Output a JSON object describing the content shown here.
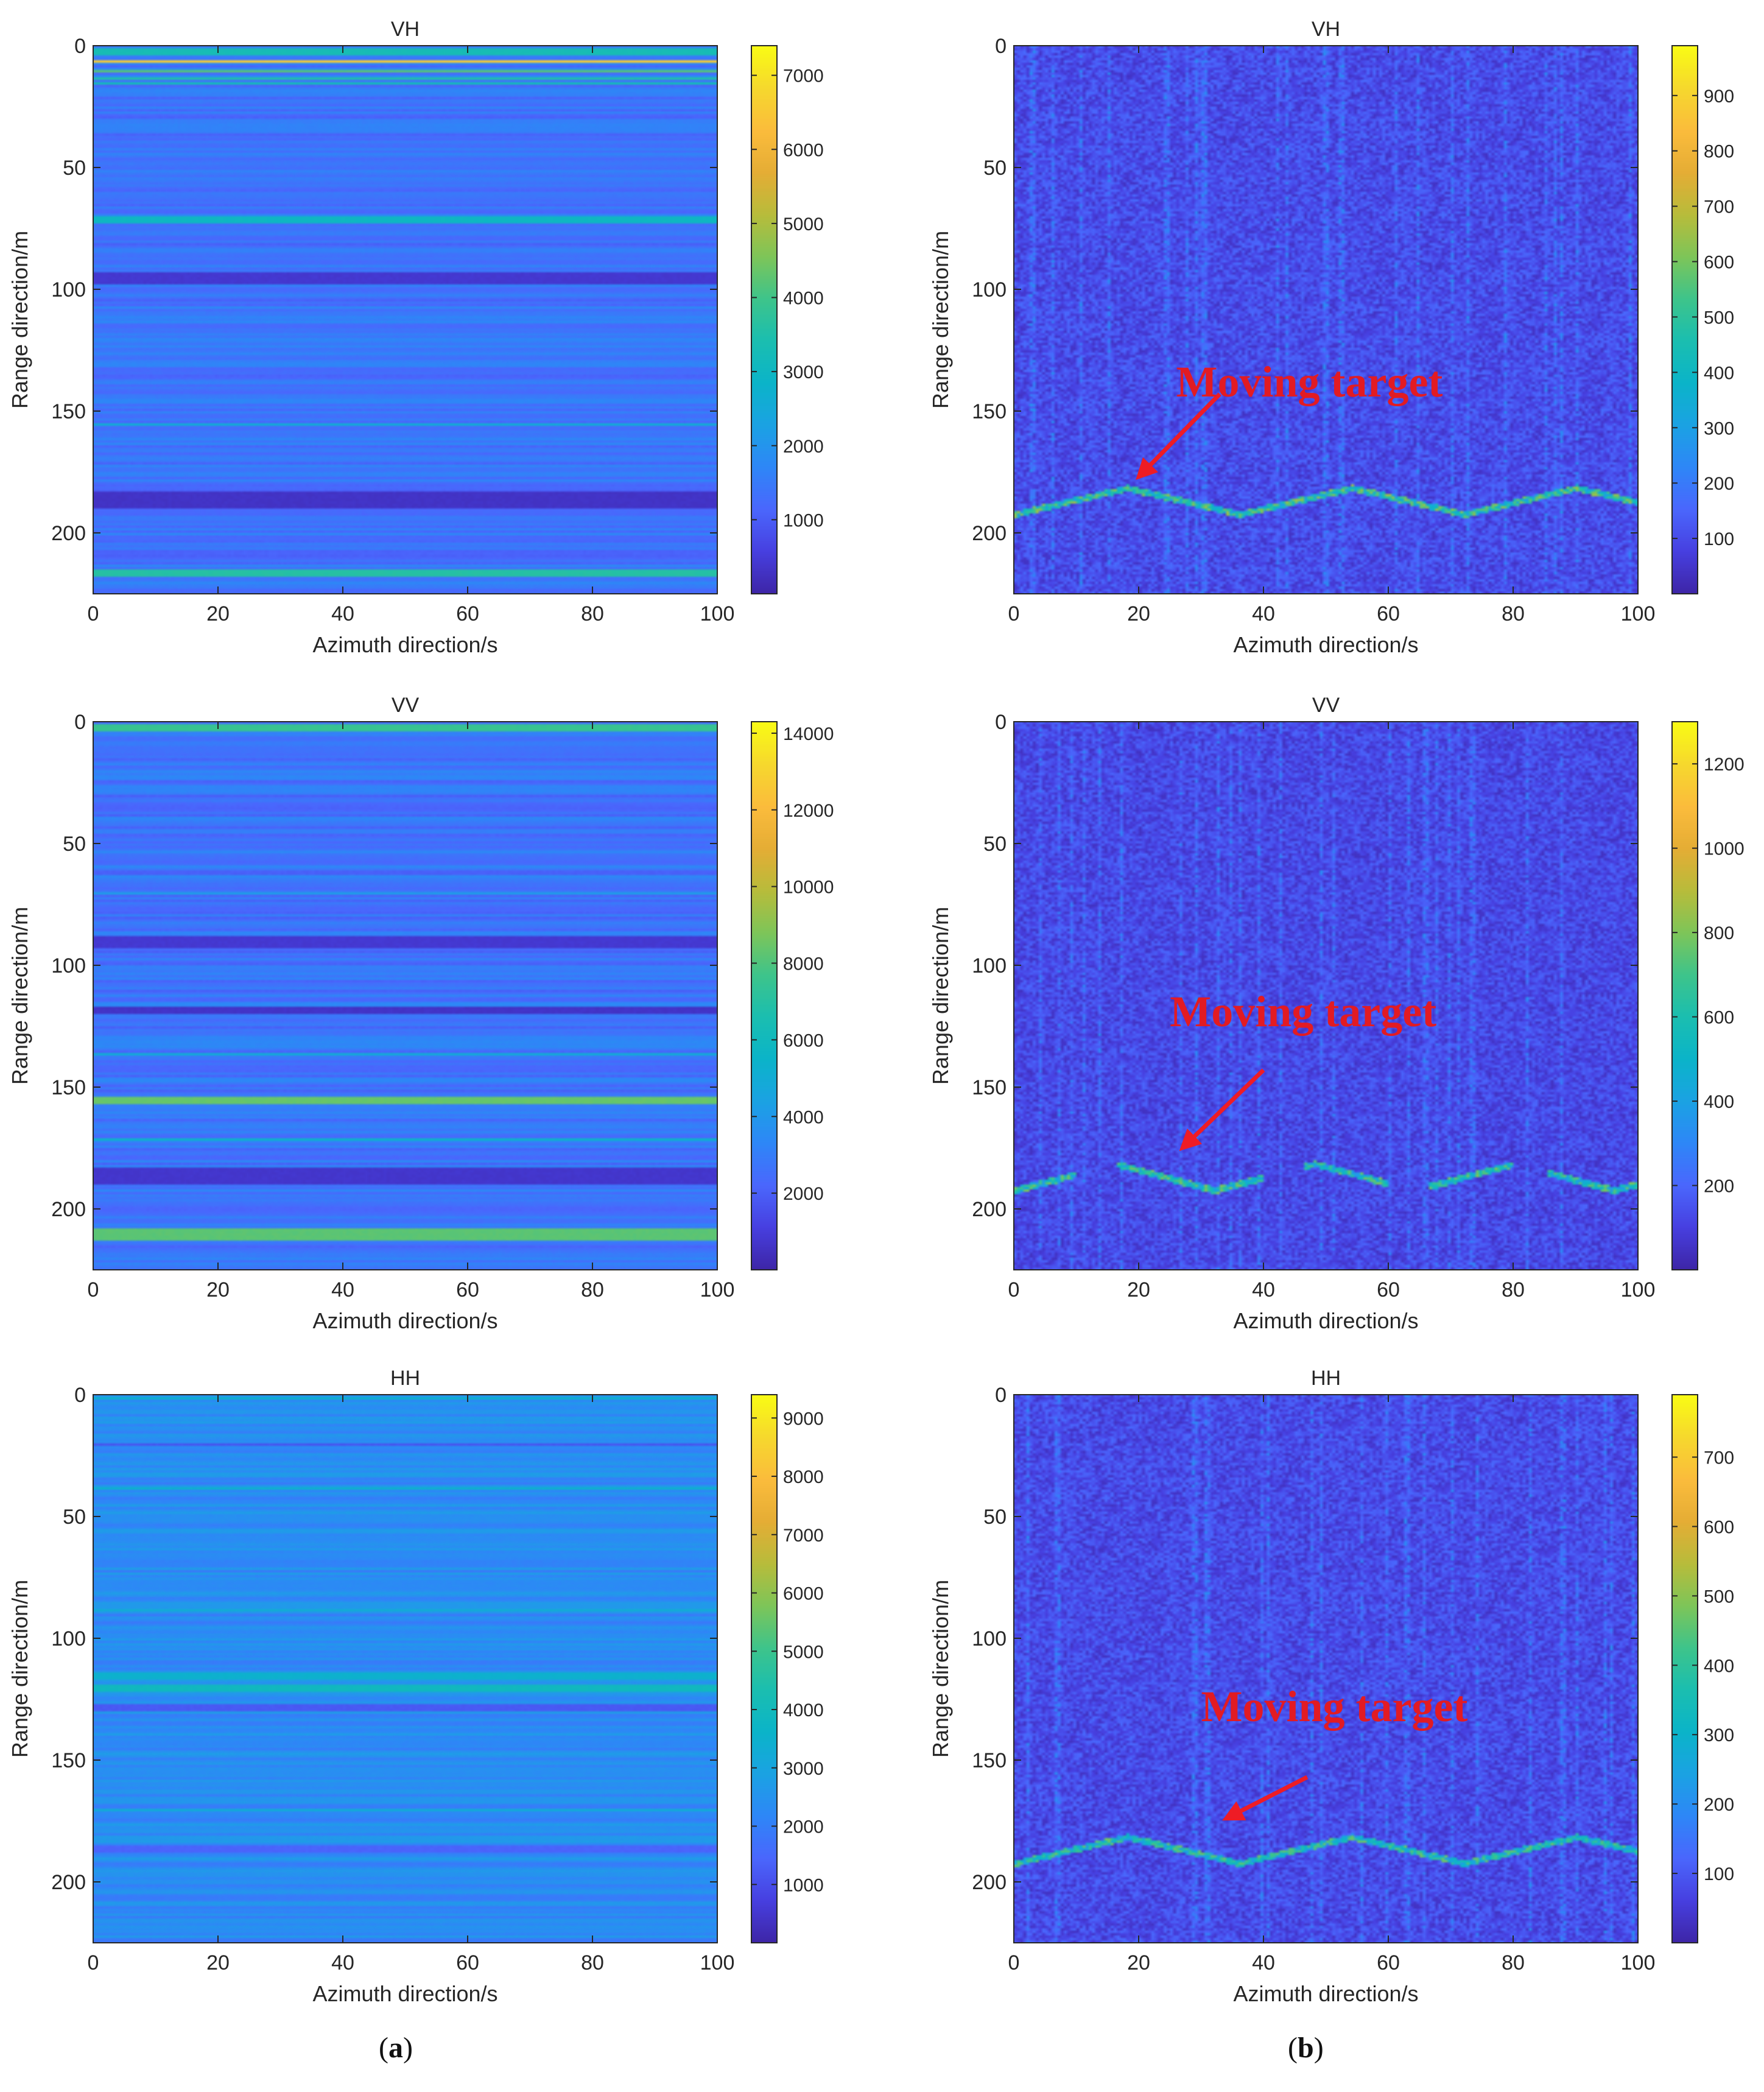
{
  "figure": {
    "captions": [
      {
        "open": "(",
        "letter": "a",
        "close": ")"
      },
      {
        "open": "(",
        "letter": "b",
        "close": ")"
      }
    ]
  },
  "colormap": [
    "#3e26a8",
    "#4740e1",
    "#4a67fd",
    "#2e87f7",
    "#1ba3e3",
    "#0bb4c9",
    "#1bbeb0",
    "#3ec48b",
    "#7ec559",
    "#b8bc3b",
    "#e5ad35",
    "#fbbc3c",
    "#f6d82e",
    "#f9fb15"
  ],
  "chart_data": [
    {
      "id": "vh-raw",
      "type": "heatmap",
      "title": "VH",
      "xlabel": "Azimuth direction/s",
      "ylabel": "Range direction/m",
      "xlim": [
        0,
        100
      ],
      "ylim": [
        0,
        225
      ],
      "xticks": [
        0,
        20,
        40,
        60,
        80,
        100
      ],
      "yticks": [
        0,
        50,
        100,
        150,
        200
      ],
      "colorbar": {
        "min": 0,
        "max": 7400,
        "ticks": [
          1000,
          2000,
          3000,
          4000,
          5000,
          6000,
          7000
        ]
      },
      "pattern": "stripes",
      "background_level": 1400,
      "noise": 350,
      "bands": [
        {
          "range": 2,
          "value": 3300,
          "width": 2
        },
        {
          "range": 6,
          "value": 6600,
          "width": 1
        },
        {
          "range": 10,
          "value": 4200,
          "width": 1
        },
        {
          "range": 13,
          "value": 3500,
          "width": 1
        },
        {
          "range": 15,
          "value": 3200,
          "width": 1
        },
        {
          "range": 71,
          "value": 3000,
          "width": 2
        },
        {
          "range": 95,
          "value": 400,
          "width": 3
        },
        {
          "range": 155,
          "value": 2600,
          "width": 1
        },
        {
          "range": 186,
          "value": 300,
          "width": 4
        },
        {
          "range": 216,
          "value": 3600,
          "width": 2
        }
      ]
    },
    {
      "id": "vh-filtered",
      "type": "heatmap",
      "title": "VH",
      "xlabel": "Azimuth direction/s",
      "ylabel": "Range direction/m",
      "xlim": [
        0,
        100
      ],
      "ylim": [
        0,
        225
      ],
      "xticks": [
        0,
        20,
        40,
        60,
        80,
        100
      ],
      "yticks": [
        0,
        50,
        100,
        150,
        200
      ],
      "colorbar": {
        "min": 0,
        "max": 990,
        "ticks": [
          100,
          200,
          300,
          400,
          500,
          600,
          700,
          800,
          900
        ]
      },
      "pattern": "noise",
      "background_level": 90,
      "noise": 90,
      "target": {
        "center": 186,
        "amplitude": 6,
        "period": 36,
        "phase": 0,
        "value": 520,
        "gaps": []
      },
      "annotation": {
        "text": "Moving target",
        "text_x": 26,
        "text_y": 144,
        "arrow_from": [
          33,
          143
        ],
        "arrow_to": [
          20,
          177
        ]
      }
    },
    {
      "id": "vv-raw",
      "type": "heatmap",
      "title": "VV",
      "xlabel": "Azimuth direction/s",
      "ylabel": "Range direction/m",
      "xlim": [
        0,
        100
      ],
      "ylim": [
        0,
        225
      ],
      "xticks": [
        0,
        20,
        40,
        60,
        80,
        100
      ],
      "yticks": [
        0,
        50,
        100,
        150,
        200
      ],
      "colorbar": {
        "min": 0,
        "max": 14300,
        "ticks": [
          2000,
          4000,
          6000,
          8000,
          10000,
          12000,
          14000
        ]
      },
      "pattern": "stripes",
      "background_level": 2700,
      "noise": 700,
      "bands": [
        {
          "range": 2,
          "value": 7500,
          "width": 2
        },
        {
          "range": 70,
          "value": 4200,
          "width": 1
        },
        {
          "range": 90,
          "value": 800,
          "width": 3
        },
        {
          "range": 118,
          "value": 600,
          "width": 2
        },
        {
          "range": 136,
          "value": 5000,
          "width": 1
        },
        {
          "range": 155,
          "value": 8400,
          "width": 2
        },
        {
          "range": 171,
          "value": 5500,
          "width": 1
        },
        {
          "range": 186,
          "value": 700,
          "width": 4
        },
        {
          "range": 210,
          "value": 8200,
          "width": 3
        }
      ]
    },
    {
      "id": "vv-filtered",
      "type": "heatmap",
      "title": "VV",
      "xlabel": "Azimuth direction/s",
      "ylabel": "Range direction/m",
      "xlim": [
        0,
        100
      ],
      "ylim": [
        0,
        225
      ],
      "xticks": [
        0,
        20,
        40,
        60,
        80,
        100
      ],
      "yticks": [
        0,
        50,
        100,
        150,
        200
      ],
      "colorbar": {
        "min": 0,
        "max": 1300,
        "ticks": [
          200,
          400,
          600,
          800,
          1000,
          1200
        ]
      },
      "pattern": "noise",
      "background_level": 110,
      "noise": 110,
      "target": {
        "center": 186,
        "amplitude": 6,
        "period": 32,
        "phase": 0,
        "value": 650,
        "gaps": [
          [
            10,
            16
          ],
          [
            40,
            46
          ],
          [
            60,
            66
          ],
          [
            80,
            85
          ]
        ]
      },
      "annotation": {
        "text": "Moving target",
        "text_x": 25,
        "text_y": 125,
        "arrow_from": [
          40,
          143
        ],
        "arrow_to": [
          27,
          175
        ]
      }
    },
    {
      "id": "hh-raw",
      "type": "heatmap",
      "title": "HH",
      "xlabel": "Azimuth direction/s",
      "ylabel": "Range direction/m",
      "xlim": [
        0,
        100
      ],
      "ylim": [
        0,
        225
      ],
      "xticks": [
        0,
        20,
        40,
        60,
        80,
        100
      ],
      "yticks": [
        0,
        50,
        100,
        150,
        200
      ],
      "colorbar": {
        "min": 0,
        "max": 9400,
        "ticks": [
          1000,
          2000,
          3000,
          4000,
          5000,
          6000,
          7000,
          8000,
          9000
        ]
      },
      "pattern": "stripes",
      "background_level": 2300,
      "noise": 450,
      "bands": [
        {
          "range": 1,
          "value": 3600,
          "width": 1
        },
        {
          "range": 20,
          "value": 1100,
          "width": 1
        },
        {
          "range": 38,
          "value": 3500,
          "width": 1
        },
        {
          "range": 88,
          "value": 3300,
          "width": 1
        },
        {
          "range": 115,
          "value": 3500,
          "width": 2
        },
        {
          "range": 120,
          "value": 3900,
          "width": 2
        },
        {
          "range": 128,
          "value": 1200,
          "width": 2
        },
        {
          "range": 170,
          "value": 3300,
          "width": 1
        },
        {
          "range": 186,
          "value": 1400,
          "width": 2
        }
      ]
    },
    {
      "id": "hh-filtered",
      "type": "heatmap",
      "title": "HH",
      "xlabel": "Azimuth direction/s",
      "ylabel": "Range direction/m",
      "xlim": [
        0,
        100
      ],
      "ylim": [
        0,
        225
      ],
      "xticks": [
        0,
        20,
        40,
        60,
        80,
        100
      ],
      "yticks": [
        0,
        50,
        100,
        150,
        200
      ],
      "colorbar": {
        "min": 0,
        "max": 790,
        "ticks": [
          100,
          200,
          300,
          400,
          500,
          600,
          700
        ]
      },
      "pattern": "noise",
      "background_level": 70,
      "noise": 70,
      "target": {
        "center": 186,
        "amplitude": 6,
        "period": 36,
        "phase": 0,
        "value": 380,
        "gaps": []
      },
      "annotation": {
        "text": "Moving target",
        "text_x": 30,
        "text_y": 134,
        "arrow_from": [
          47,
          157
        ],
        "arrow_to": [
          34,
          174
        ]
      }
    }
  ]
}
